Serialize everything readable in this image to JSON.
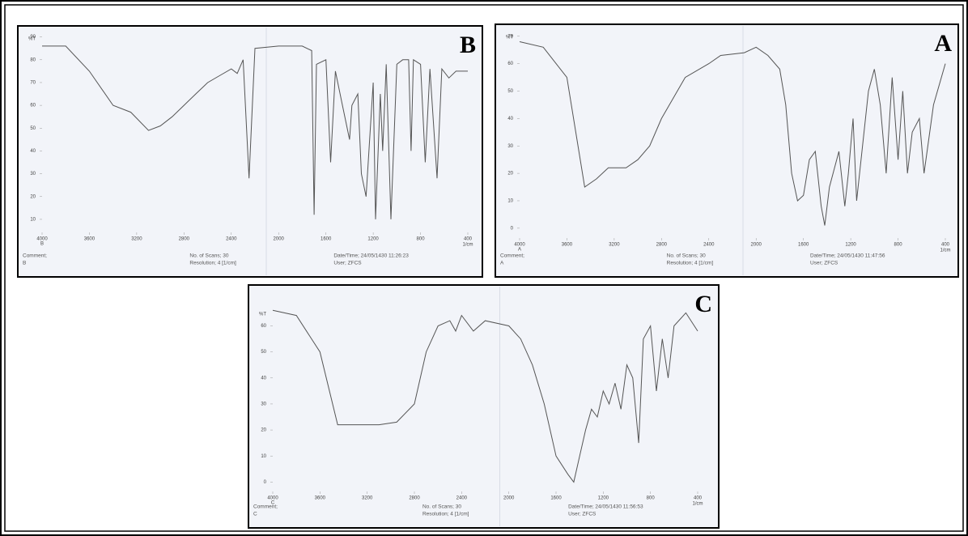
{
  "chart_data": [
    {
      "type": "line",
      "panel_label": "B",
      "ylabel": "%T",
      "xunit": "1/cm",
      "sample": "B",
      "footer": {
        "comment": "Comment;",
        "scans": "No. of Scans; 30",
        "resolution": "Resolution; 4 [1/cm]",
        "datetime": "Date/Time; 24/05/1430 11:26:23",
        "user": "User;  ZFCS"
      },
      "xlim": [
        4000,
        400
      ],
      "xticks": [
        4000,
        3600,
        3200,
        2800,
        2400,
        2000,
        1600,
        1200,
        800,
        400
      ],
      "ylim": [
        5,
        92
      ],
      "yticks": [
        10,
        20,
        30,
        40,
        50,
        60,
        70,
        80,
        90
      ],
      "x": [
        4000,
        3800,
        3600,
        3400,
        3250,
        3100,
        3000,
        2900,
        2800,
        2700,
        2600,
        2500,
        2400,
        2350,
        2300,
        2250,
        2200,
        2000,
        1800,
        1720,
        1700,
        1680,
        1600,
        1560,
        1520,
        1460,
        1400,
        1380,
        1330,
        1300,
        1260,
        1200,
        1180,
        1140,
        1120,
        1090,
        1050,
        1000,
        950,
        900,
        880,
        860,
        800,
        760,
        720,
        660,
        620,
        560,
        500,
        400
      ],
      "series": [
        {
          "name": "B",
          "color": "#555",
          "values": [
            86,
            86,
            75,
            60,
            57,
            49,
            51,
            55,
            60,
            65,
            70,
            73,
            76,
            74,
            80,
            28,
            85,
            86,
            86,
            84,
            12,
            78,
            80,
            35,
            75,
            60,
            45,
            60,
            65,
            30,
            20,
            70,
            10,
            65,
            40,
            78,
            10,
            78,
            80,
            80,
            40,
            80,
            78,
            35,
            76,
            28,
            76,
            72,
            75,
            75
          ]
        }
      ]
    },
    {
      "type": "line",
      "panel_label": "A",
      "ylabel": "%T",
      "xunit": "1/cm",
      "sample": "A",
      "footer": {
        "comment": "Comment;",
        "scans": "No. of Scans; 30",
        "resolution": "Resolution;  4 [1/cm]",
        "datetime": "Date/Time; 24/05/1430 11:47:56",
        "user": "User;  ZFCS"
      },
      "xlim": [
        4000,
        400
      ],
      "xticks": [
        4000,
        3600,
        3200,
        2800,
        2400,
        2000,
        1600,
        1200,
        800,
        400
      ],
      "ylim": [
        -3,
        72
      ],
      "yticks": [
        0,
        10,
        20,
        30,
        40,
        50,
        60,
        70
      ],
      "x": [
        4000,
        3800,
        3600,
        3450,
        3350,
        3250,
        3100,
        3000,
        2900,
        2800,
        2600,
        2400,
        2300,
        2100,
        2000,
        1900,
        1800,
        1750,
        1700,
        1650,
        1600,
        1550,
        1500,
        1450,
        1420,
        1380,
        1300,
        1250,
        1220,
        1180,
        1150,
        1100,
        1050,
        1000,
        950,
        900,
        850,
        800,
        760,
        720,
        680,
        620,
        580,
        500,
        400
      ],
      "series": [
        {
          "name": "A",
          "color": "#555",
          "values": [
            68,
            66,
            55,
            15,
            18,
            22,
            22,
            25,
            30,
            40,
            55,
            60,
            63,
            64,
            66,
            63,
            58,
            45,
            20,
            10,
            12,
            25,
            28,
            8,
            1,
            15,
            28,
            8,
            20,
            40,
            10,
            30,
            50,
            58,
            45,
            20,
            55,
            25,
            50,
            20,
            35,
            40,
            20,
            45,
            60
          ]
        }
      ]
    },
    {
      "type": "line",
      "panel_label": "C",
      "ylabel": "%T",
      "xunit": "1/cm",
      "sample": "C",
      "footer": {
        "comment": "Comment;",
        "scans": "No. of Scans; 30",
        "resolution": "Resolution;  4 [1/cm]",
        "datetime": "Date/Time; 24/05/1430 11:56:53",
        "user": "User;  ZFCS"
      },
      "xlim": [
        4000,
        400
      ],
      "xticks": [
        4000,
        3600,
        3200,
        2800,
        2400,
        2000,
        1600,
        1200,
        800,
        400
      ],
      "ylim": [
        -3,
        67
      ],
      "yticks": [
        0,
        10,
        20,
        30,
        40,
        50,
        60
      ],
      "x": [
        4000,
        3800,
        3600,
        3450,
        3300,
        3100,
        2950,
        2800,
        2700,
        2600,
        2500,
        2450,
        2400,
        2300,
        2200,
        2000,
        1900,
        1800,
        1700,
        1600,
        1500,
        1450,
        1400,
        1350,
        1300,
        1250,
        1200,
        1150,
        1100,
        1050,
        1000,
        950,
        900,
        860,
        800,
        750,
        700,
        650,
        600,
        500,
        400
      ],
      "series": [
        {
          "name": "C",
          "color": "#555",
          "values": [
            66,
            64,
            50,
            22,
            22,
            22,
            23,
            30,
            50,
            60,
            62,
            58,
            64,
            58,
            62,
            60,
            55,
            45,
            30,
            10,
            3,
            0,
            10,
            20,
            28,
            25,
            35,
            30,
            38,
            28,
            45,
            40,
            15,
            55,
            60,
            35,
            55,
            40,
            60,
            65,
            58
          ]
        }
      ]
    }
  ]
}
